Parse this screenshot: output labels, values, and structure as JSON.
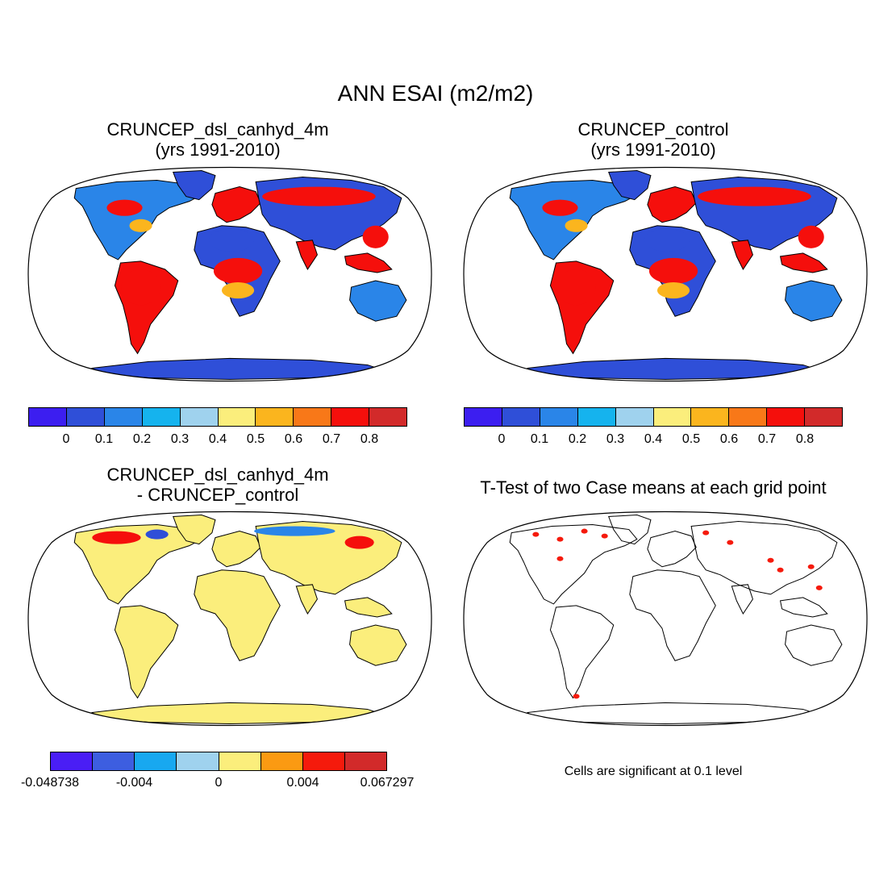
{
  "title": "ANN ESAI (m2/m2)",
  "panels": [
    {
      "title_line1": "CRUNCEP_dsl_canhyd_4m",
      "title_line2": "(yrs 1991-2010)"
    },
    {
      "title_line1": "CRUNCEP_control",
      "title_line2": "(yrs 1991-2010)"
    },
    {
      "title_line1": "CRUNCEP_dsl_canhyd_4m",
      "title_line2": "- CRUNCEP_control"
    },
    {
      "title_line1": "T-Test of two Case means at each grid point"
    }
  ],
  "colorbar_main": {
    "colors": [
      "#3c1ef0",
      "#2f4fd8",
      "#2a85e8",
      "#15b3ee",
      "#9fd2ee",
      "#fbee7c",
      "#fbb51e",
      "#f87818",
      "#f50f0c",
      "#d22a2a"
    ],
    "ticks": [
      "0",
      "0.1",
      "0.2",
      "0.3",
      "0.4",
      "0.5",
      "0.6",
      "0.7",
      "0.8"
    ]
  },
  "colorbar_diff": {
    "colors": [
      "#4a1ef5",
      "#3d5ee0",
      "#18a8f0",
      "#9fd2ee",
      "#fbee7c",
      "#fb9a12",
      "#f51a0c",
      "#d22a2a"
    ],
    "ticks": [
      "-0.048738",
      "-0.004",
      "0",
      "0.004",
      "0.067297"
    ]
  },
  "significance_note": "Cells are significant at 0.1 level",
  "colors": {
    "ocean": "#ffffff",
    "land_low": "#2f4fd8",
    "land_mid": "#2a85e8",
    "land_high": "#f50f0c",
    "land_orange": "#fbb51e",
    "diff_fill": "#fbee7c",
    "significant": "#f51a0c",
    "coast": "#000000"
  }
}
